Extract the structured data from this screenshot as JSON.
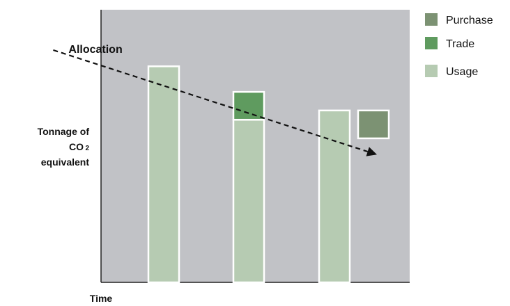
{
  "chart_data": {
    "type": "bar",
    "xlabel": "Time",
    "ylabel_lines": [
      "Tonnage of",
      "CO",
      "equivalent"
    ],
    "ylabel_subscript": "2",
    "categories": [
      "",
      "",
      ""
    ],
    "ylim": [
      0,
      100
    ],
    "series": [
      {
        "name": "Usage",
        "color": "#b6cbb2",
        "values": [
          93,
          70,
          74
        ]
      },
      {
        "name": "Trade",
        "color": "#5f9b5f",
        "values": [
          0,
          12,
          0
        ]
      }
    ],
    "purchase_box": {
      "name": "Purchase",
      "color": "#7c9273",
      "bottom": 62,
      "top": 74
    },
    "allocation_line": {
      "label": "Allocation",
      "start": [
        -1.3,
        100
      ],
      "end": [
        2.5,
        55
      ]
    },
    "legend": {
      "placement": "top-right",
      "items": [
        {
          "name": "Purchase",
          "color": "#7c9273"
        },
        {
          "name": "Trade",
          "color": "#5f9b5f"
        },
        {
          "name": "Usage",
          "color": "#b6cbb2"
        }
      ]
    },
    "background_color": "#c1c2c6"
  }
}
